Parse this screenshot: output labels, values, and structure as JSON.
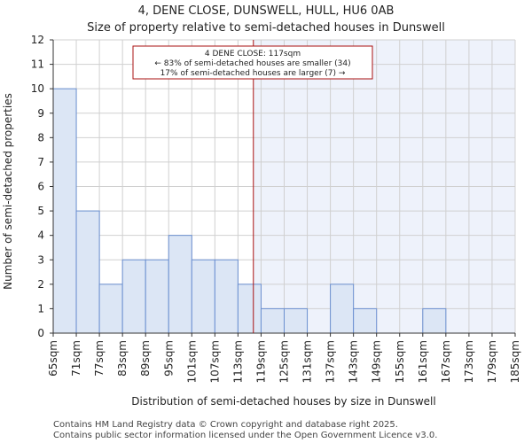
{
  "chart_data": {
    "type": "bar",
    "title": "4, DENE CLOSE, DUNSWELL, HULL, HU6 0AB",
    "subtitle": "Size of property relative to semi-detached houses in Dunswell",
    "xlabel": "Distribution of semi-detached houses by size in Dunswell",
    "ylabel": "Number of semi-detached properties",
    "bin_edges": [
      "65sqm",
      "71sqm",
      "77sqm",
      "83sqm",
      "89sqm",
      "95sqm",
      "101sqm",
      "107sqm",
      "113sqm",
      "119sqm",
      "125sqm",
      "131sqm",
      "137sqm",
      "143sqm",
      "149sqm",
      "155sqm",
      "161sqm",
      "167sqm",
      "173sqm",
      "179sqm",
      "185sqm"
    ],
    "bin_start": 65,
    "bin_width": 6,
    "values": [
      10,
      5,
      2,
      3,
      3,
      4,
      3,
      3,
      2,
      1,
      1,
      0,
      2,
      1,
      0,
      0,
      1,
      0,
      0,
      0
    ],
    "ylim": [
      0,
      12
    ],
    "yticks": [
      0,
      1,
      2,
      3,
      4,
      5,
      6,
      7,
      8,
      9,
      10,
      11,
      12
    ],
    "grid": true,
    "marker": {
      "value": 117,
      "label_line1": "4 DENE CLOSE: 117sqm",
      "label_line2": "← 83% of semi-detached houses are smaller (34)",
      "label_line3": "17% of semi-detached houses are larger (7) →"
    },
    "colors": {
      "bar_fill": "#dce6f5",
      "bar_stroke": "#6b8fd0",
      "marker": "#aa1111",
      "shade": "#eef2fb"
    }
  },
  "footer": {
    "line1": "Contains HM Land Registry data © Crown copyright and database right 2025.",
    "line2": "Contains public sector information licensed under the Open Government Licence v3.0."
  }
}
